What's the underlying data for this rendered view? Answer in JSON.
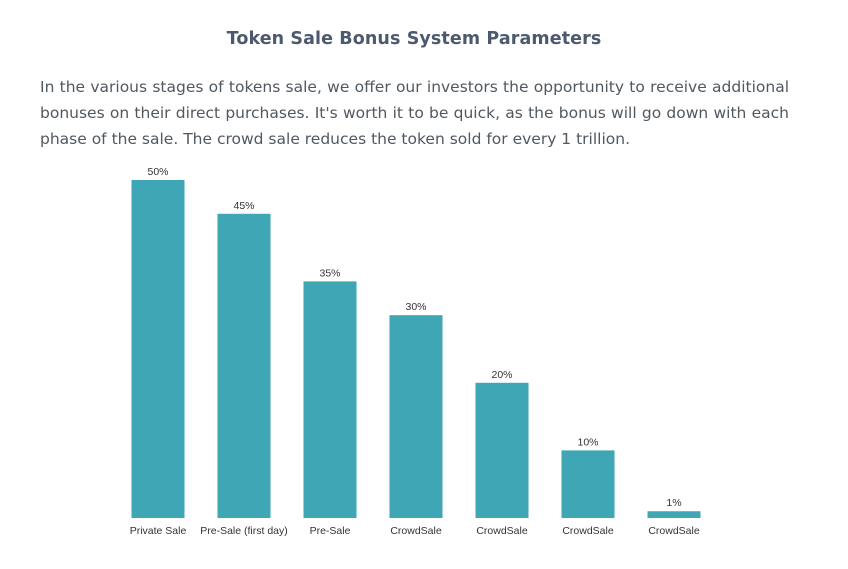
{
  "page": {
    "heading": "Token Sale Bonus System Parameters",
    "intro": "In the various stages of tokens sale, we offer our investors the opportunity to receive additional bonuses on their direct purchases. It's worth it to be quick, as the bonus will go down with each phase of the sale. The crowd sale reduces the token sold for every 1 trillion."
  },
  "chart_data": {
    "type": "bar",
    "categories": [
      "Private Sale",
      "Pre-Sale (first day)",
      "Pre-Sale",
      "CrowdSale",
      "CrowdSale",
      "CrowdSale",
      "CrowdSale"
    ],
    "values": [
      50,
      45,
      35,
      30,
      20,
      10,
      1
    ],
    "data_labels": [
      "50%",
      "45%",
      "35%",
      "30%",
      "20%",
      "10%",
      "1%"
    ],
    "title": "",
    "xlabel": "",
    "ylabel": "",
    "ylim": [
      0,
      50
    ],
    "grid": false,
    "legend": "none",
    "colors": {
      "bar": "#3ea6b5",
      "baseline": "#3ea6b5"
    }
  }
}
